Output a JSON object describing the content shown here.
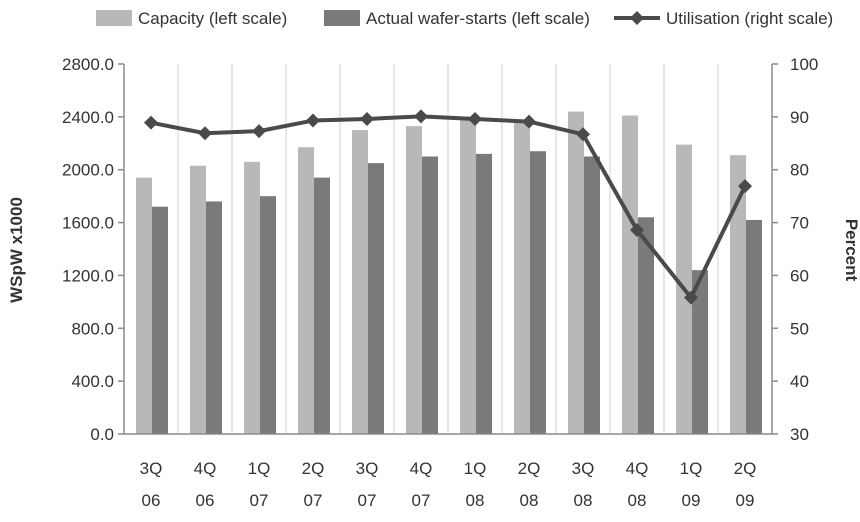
{
  "chart_data": {
    "type": "bar",
    "categories": [
      [
        "3Q",
        "06"
      ],
      [
        "4Q",
        "06"
      ],
      [
        "1Q",
        "07"
      ],
      [
        "2Q",
        "07"
      ],
      [
        "3Q",
        "07"
      ],
      [
        "4Q",
        "07"
      ],
      [
        "1Q",
        "08"
      ],
      [
        "2Q",
        "08"
      ],
      [
        "3Q",
        "08"
      ],
      [
        "4Q",
        "08"
      ],
      [
        "1Q",
        "09"
      ],
      [
        "2Q",
        "09"
      ]
    ],
    "series": [
      {
        "name": "Capacity (left scale)",
        "kind": "bar",
        "axis": "left",
        "color": "#b8b8b8",
        "values": [
          1940,
          2030,
          2060,
          2170,
          2300,
          2330,
          2400,
          2380,
          2440,
          2410,
          2190,
          2110
        ]
      },
      {
        "name": "Actual wafer-starts (left scale)",
        "kind": "bar",
        "axis": "left",
        "color": "#7a7a7a",
        "values": [
          1720,
          1760,
          1800,
          1940,
          2050,
          2100,
          2120,
          2140,
          2100,
          1640,
          1240,
          1620
        ]
      },
      {
        "name": "Utilisation (right scale)",
        "kind": "line",
        "axis": "right",
        "color": "#4a4a4a",
        "values": [
          88.9,
          86.9,
          87.3,
          89.3,
          89.6,
          90.1,
          89.6,
          89.1,
          86.7,
          68.6,
          55.8,
          76.9
        ]
      }
    ],
    "ylabel": "WSpW x1000",
    "y2label": "Percent",
    "ylim": [
      0,
      2800
    ],
    "y2lim": [
      30,
      100
    ],
    "yticks": [
      "0.0",
      "400.0",
      "800.0",
      "1200.0",
      "1600.0",
      "2000.0",
      "2400.0",
      "2800.0"
    ],
    "y2ticks": [
      "30",
      "40",
      "50",
      "60",
      "70",
      "80",
      "90",
      "100"
    ],
    "grid": "vertical",
    "legend_position": "top"
  }
}
